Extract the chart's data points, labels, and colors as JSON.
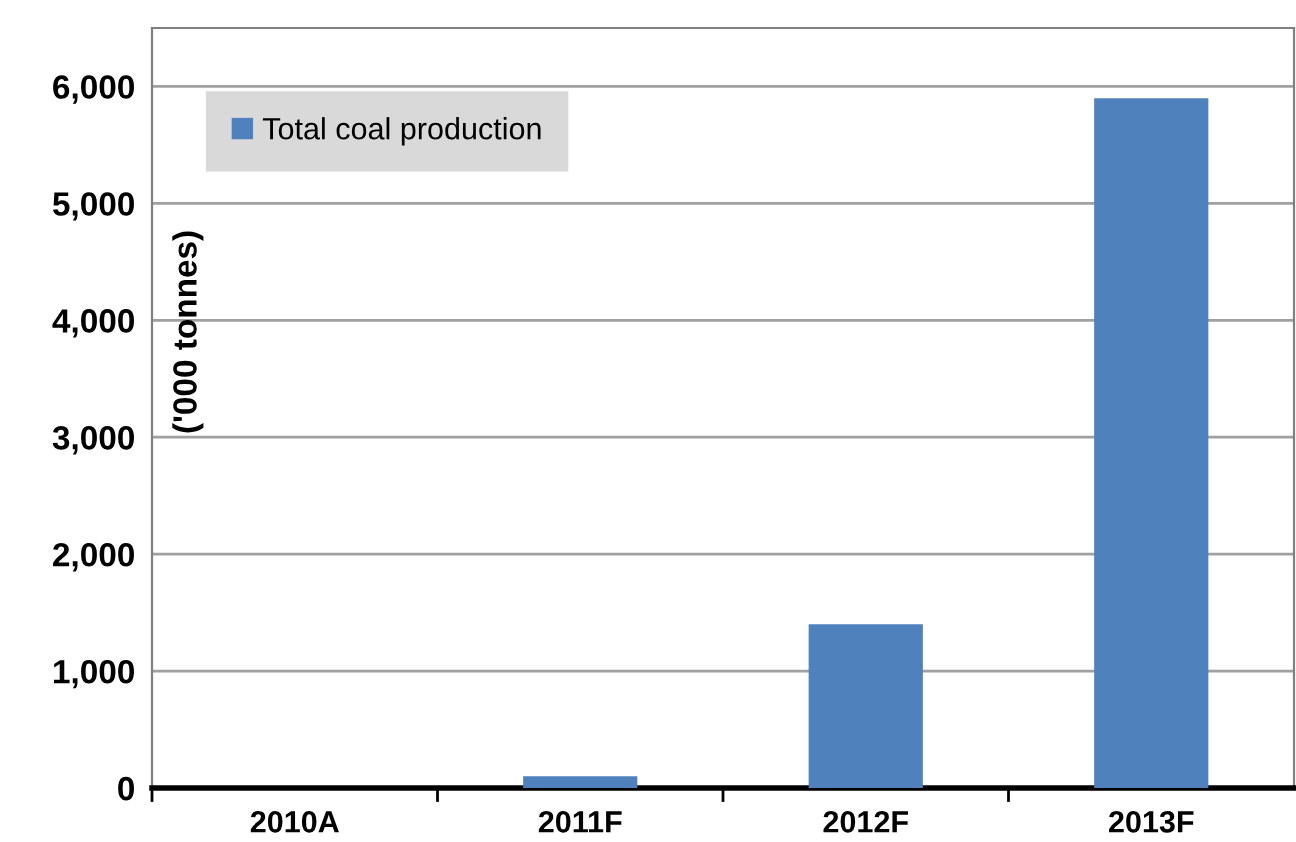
{
  "chart_data": {
    "type": "bar",
    "ylabel": "('000 tonnes)",
    "categories": [
      "2010A",
      "2011F",
      "2012F",
      "2013F"
    ],
    "series": [
      {
        "name": "Total coal production",
        "color": "#4f81bd",
        "values": [
          0,
          100,
          1400,
          5900
        ]
      }
    ],
    "ylim": [
      0,
      6500
    ],
    "yticks": [
      {
        "value": 0,
        "label": "0"
      },
      {
        "value": 1000,
        "label": "1,000"
      },
      {
        "value": 2000,
        "label": "2,000"
      },
      {
        "value": 3000,
        "label": "3,000"
      },
      {
        "value": 4000,
        "label": "4,000"
      },
      {
        "value": 5000,
        "label": "5,000"
      },
      {
        "value": 6000,
        "label": "6,000"
      }
    ],
    "grid": "y",
    "legend": "top left"
  }
}
